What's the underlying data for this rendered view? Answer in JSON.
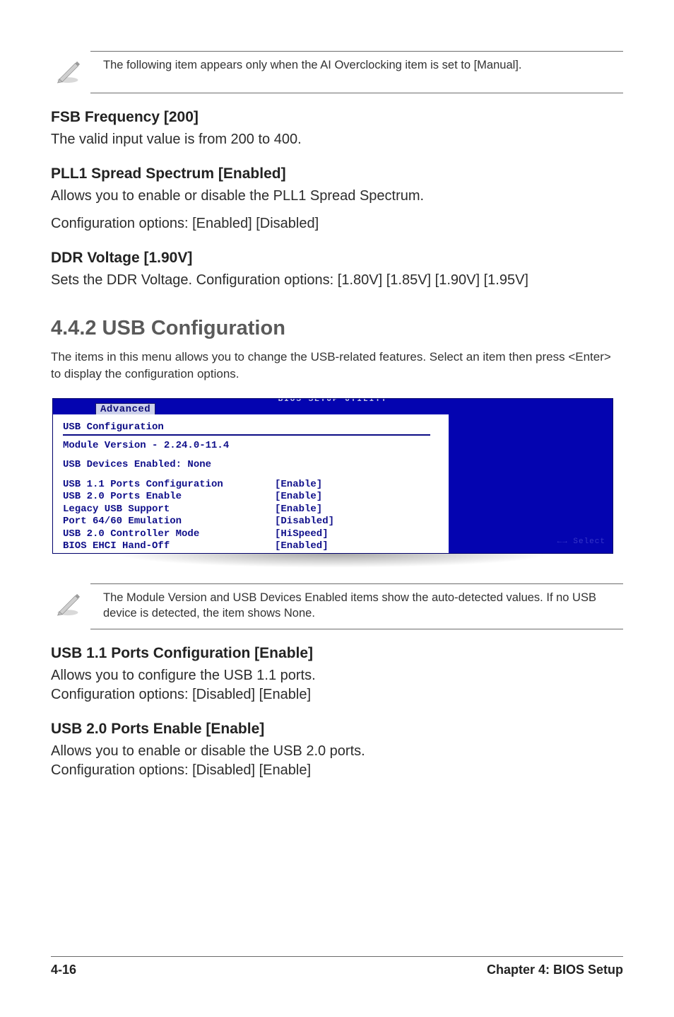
{
  "notes": {
    "top": "The following item appears only when the AI Overclocking item is set to [Manual].",
    "mid": "The Module Version and USB Devices Enabled items show the auto-detected values. If no USB device is detected, the item shows None."
  },
  "top_block": {
    "h1": "FSB Frequency [200]",
    "p1": "The valid input value is from 200 to 400.",
    "h2": "PLL1 Spread Spectrum [Enabled]",
    "p2a": "Allows you to enable or disable the PLL1 Spread Spectrum.",
    "p2b": "Configuration options: [Enabled] [Disabled]",
    "h3": "DDR Voltage [1.90V]",
    "p3": "Sets the DDR Voltage. Configuration options: [1.80V] [1.85V] [1.90V] [1.95V]"
  },
  "section": {
    "title": "4.4.2   USB Configuration",
    "intro": "The items in this menu allows you to change the USB-related features. Select an item then press <Enter> to display the configuration options."
  },
  "bios": {
    "titlebar": "BIOS SETUP UTILITY",
    "tab": "Advanced",
    "heading": "USB Configuration",
    "module_line": "Module Version - 2.24.0-11.4",
    "devices_line": "USB Devices Enabled: None",
    "rows": [
      {
        "label": "USB 1.1 Ports Configuration",
        "value": "[Enable]"
      },
      {
        "label": "USB 2.0 Ports Enable",
        "value": "[Enable]"
      },
      {
        "label": "Legacy USB Support",
        "value": "[Enable]"
      },
      {
        "label": "Port 64/60 Emulation",
        "value": "[Disabled]"
      },
      {
        "label": "USB 2.0 Controller Mode",
        "value": "[HiSpeed]"
      },
      {
        "label": "BIOS EHCI Hand-Off",
        "value": "[Enabled]"
      }
    ],
    "right_glow": "←→   Select"
  },
  "bottom_block": {
    "h1": "USB 1.1 Ports Configuration [Enable]",
    "p1a": "Allows you to configure the USB 1.1 ports.",
    "p1b": "Configuration options: [Disabled] [Enable]",
    "h2": "USB 2.0 Ports Enable [Enable]",
    "p2a": "Allows you to enable or disable the USB 2.0 ports.",
    "p2b": "Configuration options: [Disabled] [Enable]"
  },
  "footer": {
    "left": "4-16",
    "right": "Chapter 4: BIOS Setup"
  },
  "colors": {
    "bios_blue": "#0404b0",
    "bios_text": "#0f0f8a",
    "rule": "#6d6d6d"
  }
}
